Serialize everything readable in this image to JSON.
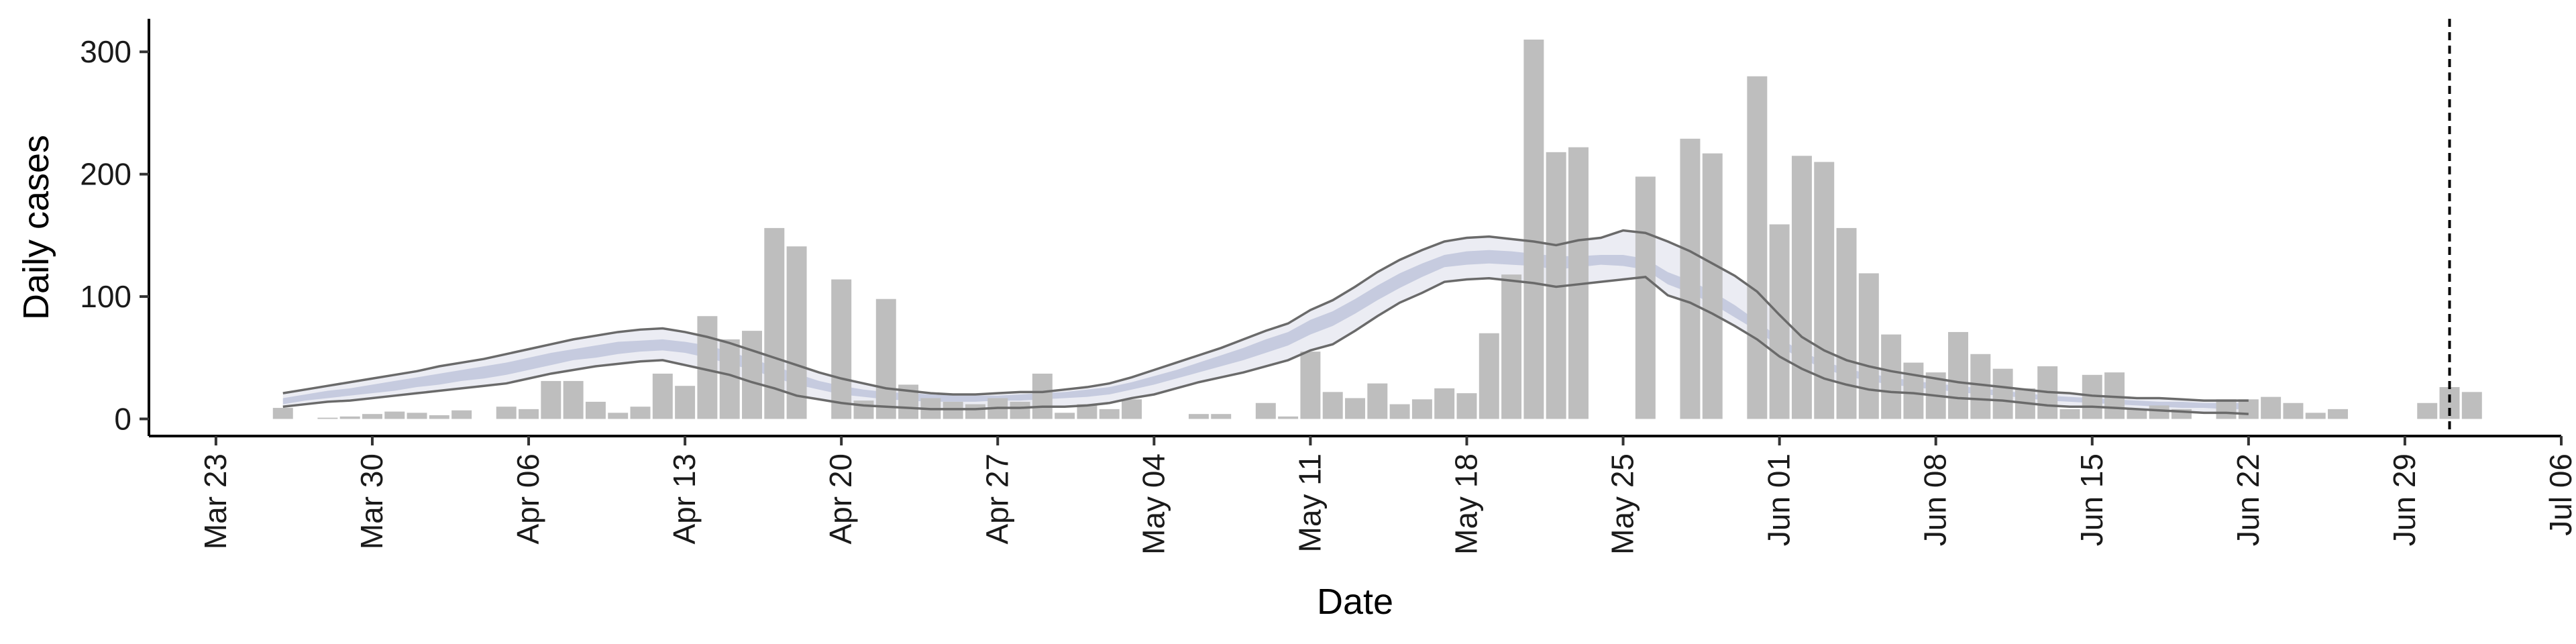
{
  "chart_data": {
    "type": "bar",
    "xlabel": "Date",
    "ylabel": "Daily cases",
    "xlim": [
      "2020-03-20",
      "2020-07-06"
    ],
    "ylim": [
      -14,
      327
    ],
    "yticks": [
      0,
      100,
      200,
      300
    ],
    "xticks": [
      {
        "date": "2020-03-23",
        "label": "Mar 23"
      },
      {
        "date": "2020-03-30",
        "label": "Mar 30"
      },
      {
        "date": "2020-04-06",
        "label": "Apr 06"
      },
      {
        "date": "2020-04-13",
        "label": "Apr 13"
      },
      {
        "date": "2020-04-20",
        "label": "Apr 20"
      },
      {
        "date": "2020-04-27",
        "label": "Apr 27"
      },
      {
        "date": "2020-05-04",
        "label": "May 04"
      },
      {
        "date": "2020-05-11",
        "label": "May 11"
      },
      {
        "date": "2020-05-18",
        "label": "May 18"
      },
      {
        "date": "2020-05-25",
        "label": "May 25"
      },
      {
        "date": "2020-06-01",
        "label": "Jun 01"
      },
      {
        "date": "2020-06-08",
        "label": "Jun 08"
      },
      {
        "date": "2020-06-15",
        "label": "Jun 15"
      },
      {
        "date": "2020-06-22",
        "label": "Jun 22"
      },
      {
        "date": "2020-06-29",
        "label": "Jun 29"
      },
      {
        "date": "2020-07-06",
        "label": "Jul 06"
      }
    ],
    "bars": {
      "start_date": "2020-03-26",
      "values": [
        9,
        0,
        1,
        2,
        4,
        6,
        5,
        3,
        7,
        0,
        10,
        8,
        31,
        31,
        14,
        5,
        10,
        37,
        27,
        84,
        65,
        72,
        156,
        141,
        0,
        114,
        15,
        98,
        28,
        17,
        14,
        12,
        17,
        14,
        37,
        5,
        12,
        8,
        16,
        0,
        0,
        4,
        4,
        0,
        13,
        2,
        55,
        22,
        17,
        29,
        12,
        16,
        25,
        21,
        70,
        118,
        310,
        218,
        222,
        0,
        0,
        198,
        0,
        229,
        217,
        0,
        280,
        159,
        215,
        210,
        156,
        119,
        69,
        46,
        38,
        71,
        53,
        41,
        25,
        43,
        8,
        36,
        38,
        8,
        11,
        8,
        0,
        16,
        16,
        18,
        13,
        5,
        8,
        0,
        0,
        0,
        13,
        26,
        22
      ],
      "color": "#bebebe"
    },
    "estimate": {
      "start_date": "2020-03-26",
      "outer_color": "#e6e7f0",
      "inner_color": "#c0c6da",
      "line_color": "#6a6a6a",
      "outer_low": [
        10,
        12,
        14,
        15,
        17,
        19,
        21,
        23,
        25,
        27,
        29,
        33,
        37,
        40,
        43,
        45,
        47,
        48,
        44,
        40,
        36,
        30,
        25,
        19,
        16,
        13,
        11,
        10,
        9,
        8,
        8,
        8,
        9,
        9,
        10,
        10,
        11,
        13,
        17,
        20,
        25,
        30,
        34,
        38,
        43,
        48,
        56,
        61,
        72,
        84,
        95,
        103,
        112,
        114,
        115,
        113,
        111,
        108,
        110,
        112,
        114,
        116,
        101,
        95,
        86,
        76,
        65,
        51,
        41,
        33,
        28,
        24,
        22,
        21,
        19,
        17,
        16,
        15,
        13,
        11,
        10,
        10,
        9,
        8,
        7,
        6,
        5,
        5,
        4
      ],
      "inner_low": [
        12,
        15,
        17,
        19,
        21,
        23,
        26,
        28,
        31,
        33,
        36,
        40,
        44,
        48,
        50,
        53,
        55,
        56,
        54,
        50,
        45,
        40,
        34,
        28,
        24,
        20,
        18,
        16,
        15,
        14,
        14,
        14,
        15,
        15,
        16,
        17,
        18,
        20,
        24,
        28,
        33,
        38,
        43,
        48,
        54,
        60,
        69,
        76,
        86,
        97,
        107,
        116,
        124,
        126,
        127,
        126,
        125,
        122,
        124,
        126,
        125,
        122,
        110,
        103,
        94,
        83,
        72,
        59,
        49,
        41,
        35,
        31,
        28,
        26,
        24,
        22,
        20,
        19,
        17,
        15,
        14,
        13,
        12,
        11,
        10,
        9,
        9,
        8,
        8
      ],
      "inner_high": [
        17,
        20,
        23,
        25,
        28,
        31,
        34,
        37,
        40,
        43,
        46,
        50,
        54,
        57,
        60,
        63,
        64,
        65,
        63,
        60,
        55,
        49,
        43,
        37,
        31,
        27,
        24,
        22,
        21,
        20,
        19,
        19,
        19,
        20,
        21,
        22,
        24,
        26,
        30,
        35,
        40,
        46,
        52,
        58,
        65,
        71,
        81,
        88,
        98,
        109,
        119,
        127,
        134,
        137,
        138,
        137,
        135,
        133,
        133,
        134,
        134,
        131,
        120,
        113,
        104,
        93,
        80,
        66,
        55,
        47,
        41,
        37,
        34,
        31,
        29,
        27,
        25,
        23,
        21,
        19,
        18,
        17,
        16,
        15,
        14,
        14,
        13,
        13,
        13
      ],
      "outer_high": [
        21,
        24,
        27,
        30,
        33,
        36,
        39,
        43,
        46,
        49,
        53,
        57,
        61,
        65,
        68,
        71,
        73,
        74,
        71,
        67,
        62,
        56,
        50,
        44,
        38,
        33,
        29,
        25,
        23,
        21,
        20,
        20,
        21,
        22,
        22,
        24,
        26,
        29,
        34,
        40,
        46,
        52,
        58,
        65,
        72,
        78,
        89,
        97,
        108,
        120,
        130,
        138,
        145,
        148,
        149,
        147,
        145,
        142,
        146,
        148,
        154,
        152,
        145,
        137,
        127,
        117,
        104,
        85,
        67,
        56,
        48,
        43,
        39,
        36,
        33,
        30,
        28,
        26,
        24,
        22,
        21,
        19,
        18,
        17,
        17,
        16,
        15,
        15,
        15
      ]
    },
    "vline_date": "2020-07-01",
    "grid": false,
    "legend": "none"
  }
}
